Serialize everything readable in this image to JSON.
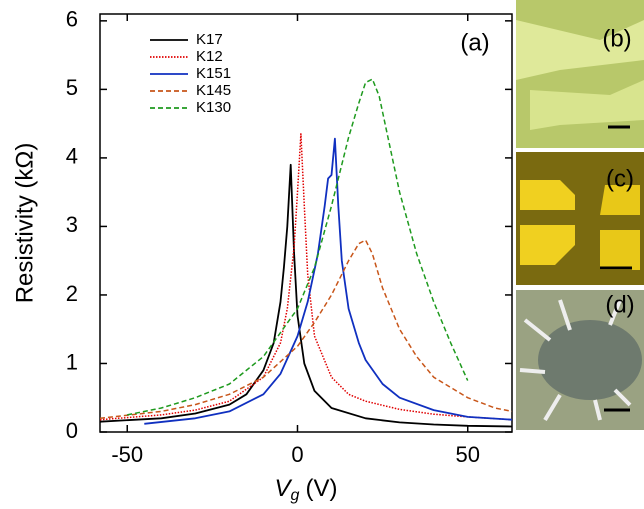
{
  "chart_data": {
    "type": "line",
    "annotation": "(a)",
    "y_label": "Resistivity (kΩ)",
    "x_label": {
      "main": "V",
      "sub": "g",
      "unit": "(V)"
    },
    "xlim": [
      -58,
      63
    ],
    "ylim": [
      0,
      6.1
    ],
    "xticks": [
      -50,
      0,
      50
    ],
    "yticks": [
      0,
      1,
      2,
      3,
      4,
      5,
      6
    ],
    "legend": "upper-left",
    "series": [
      {
        "name": "K17",
        "color": "#000000",
        "style": "solid",
        "x": [
          -58,
          -40,
          -30,
          -20,
          -15,
          -10,
          -7,
          -5,
          -4,
          -3,
          -2,
          -1,
          0,
          2,
          5,
          10,
          20,
          30,
          40,
          50,
          63
        ],
        "values": [
          0.15,
          0.2,
          0.27,
          0.4,
          0.55,
          0.9,
          1.3,
          1.9,
          2.4,
          3.0,
          3.9,
          2.6,
          1.7,
          1.0,
          0.6,
          0.35,
          0.2,
          0.14,
          0.11,
          0.09,
          0.08
        ]
      },
      {
        "name": "K12",
        "color": "#e00000",
        "style": "dotted",
        "x": [
          -58,
          -40,
          -30,
          -20,
          -10,
          -5,
          -3,
          -1,
          0,
          1,
          2,
          3,
          5,
          10,
          15,
          20,
          30,
          40,
          50,
          63
        ],
        "values": [
          0.18,
          0.25,
          0.32,
          0.45,
          0.8,
          1.3,
          1.8,
          2.7,
          3.5,
          4.35,
          3.3,
          2.3,
          1.4,
          0.8,
          0.55,
          0.45,
          0.33,
          0.26,
          0.22,
          0.18
        ]
      },
      {
        "name": "K151",
        "color": "#1030c0",
        "style": "solid",
        "x": [
          -45,
          -30,
          -20,
          -10,
          -5,
          0,
          3,
          6,
          8,
          9,
          10,
          11,
          12,
          13,
          15,
          18,
          20,
          25,
          30,
          40,
          50,
          63
        ],
        "values": [
          0.12,
          0.2,
          0.3,
          0.55,
          0.85,
          1.4,
          1.9,
          2.6,
          3.3,
          3.7,
          3.75,
          4.28,
          3.3,
          2.5,
          1.8,
          1.3,
          1.05,
          0.7,
          0.5,
          0.32,
          0.22,
          0.18
        ]
      },
      {
        "name": "K145",
        "color": "#c8561a",
        "style": "dashed",
        "x": [
          -58,
          -40,
          -30,
          -20,
          -10,
          0,
          5,
          10,
          15,
          18,
          20,
          22,
          25,
          30,
          35,
          40,
          50,
          58,
          63
        ],
        "values": [
          0.2,
          0.3,
          0.4,
          0.55,
          0.8,
          1.25,
          1.6,
          2.0,
          2.5,
          2.75,
          2.8,
          2.6,
          2.1,
          1.5,
          1.1,
          0.8,
          0.5,
          0.35,
          0.3
        ]
      },
      {
        "name": "K130",
        "color": "#1e9a1e",
        "style": "dashed",
        "x": [
          -50,
          -40,
          -30,
          -20,
          -10,
          0,
          5,
          10,
          15,
          18,
          20,
          22,
          24,
          27,
          30,
          35,
          40,
          45,
          50
        ],
        "values": [
          0.25,
          0.35,
          0.5,
          0.7,
          1.1,
          1.8,
          2.4,
          3.3,
          4.3,
          4.8,
          5.1,
          5.15,
          4.9,
          4.2,
          3.5,
          2.6,
          1.9,
          1.3,
          0.75
        ]
      }
    ]
  },
  "panels": [
    "(b)",
    "(c)",
    "(d)"
  ]
}
